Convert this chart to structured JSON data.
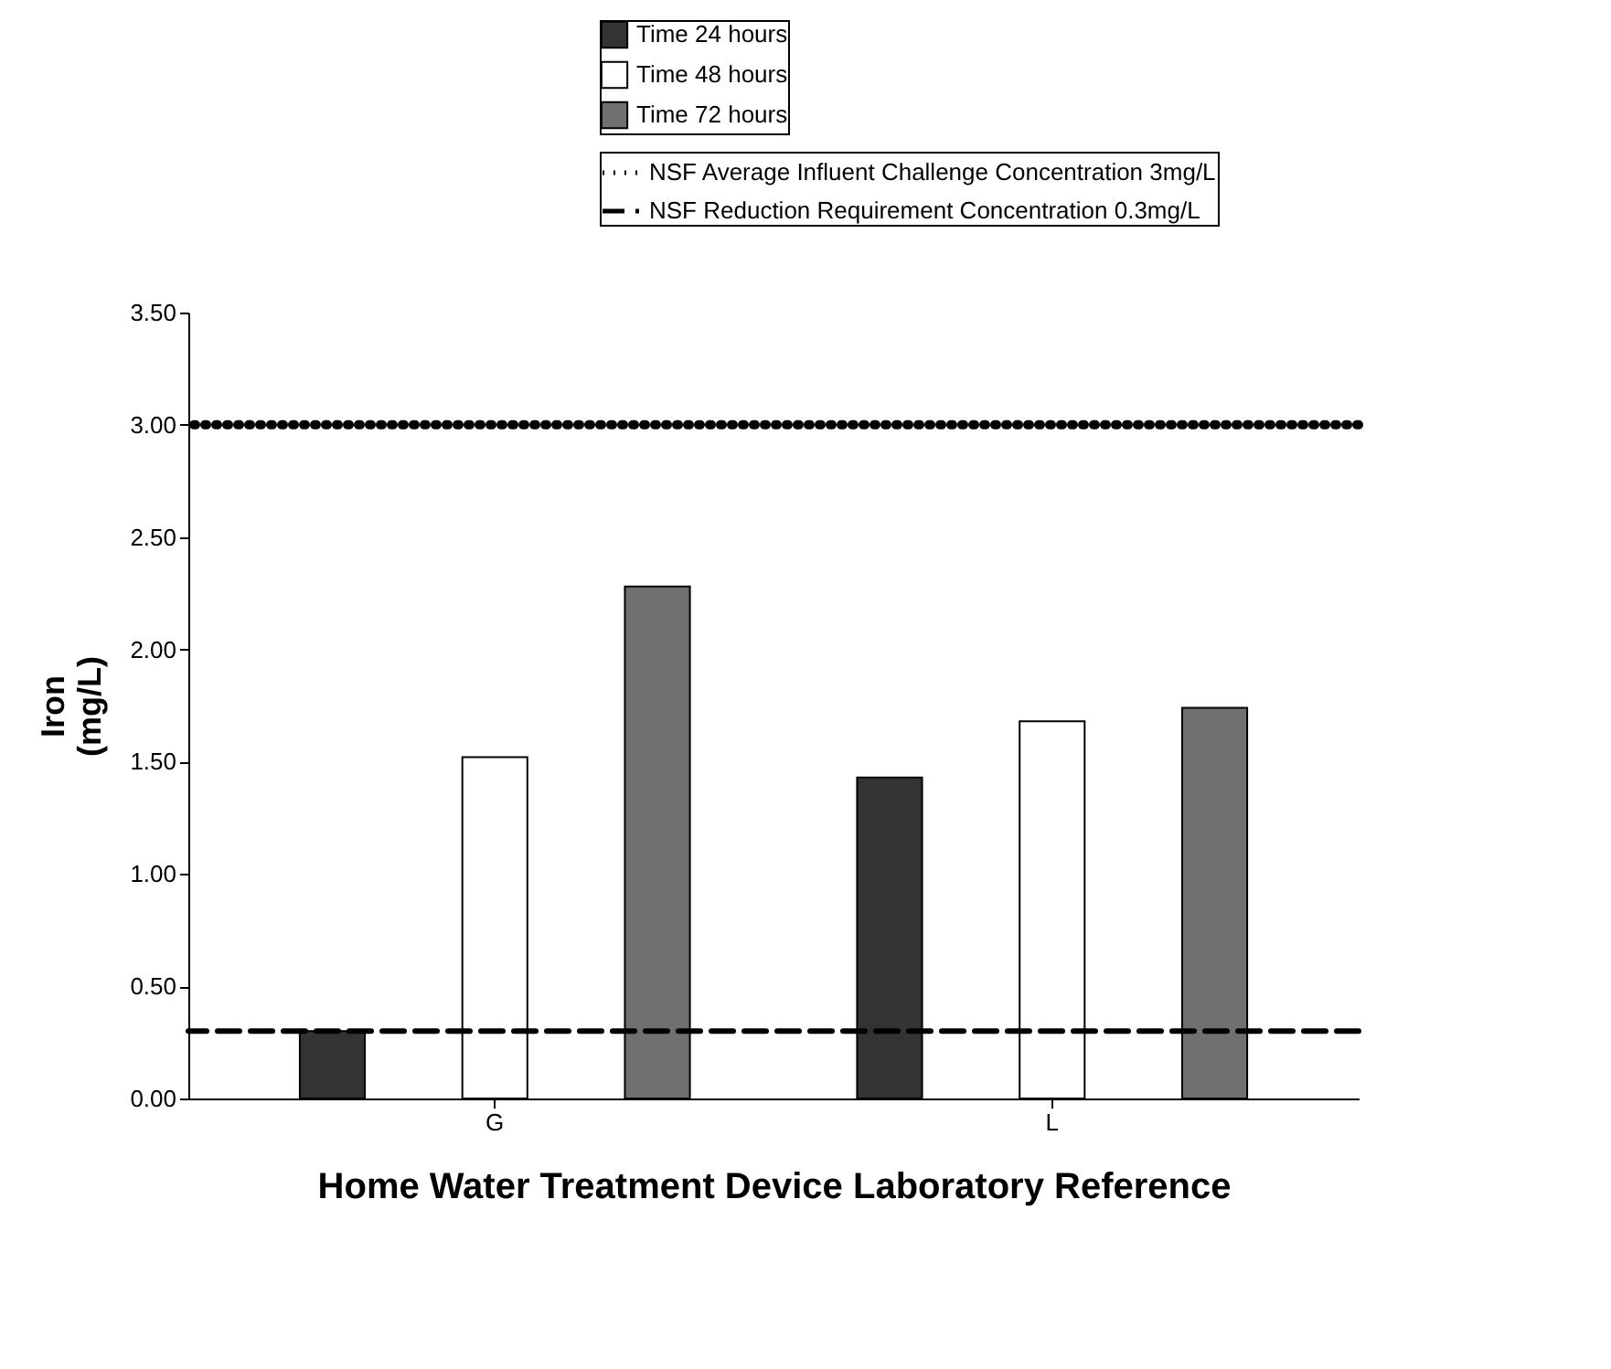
{
  "chart_data": {
    "type": "bar",
    "xlabel": "Home Water Treatment Device Laboratory Reference",
    "ylabel": "Iron\n(mg/L)",
    "categories": [
      "G",
      "L"
    ],
    "series": [
      {
        "name": "Time 24 hours",
        "color": "#333333",
        "values": [
          0.3,
          1.43
        ]
      },
      {
        "name": "Time 48 hours",
        "color": "#ffffff",
        "values": [
          1.52,
          1.68
        ]
      },
      {
        "name": "Time 72 hours",
        "color": "#707070",
        "values": [
          2.28,
          1.74
        ]
      }
    ],
    "ylim": [
      0,
      3.5
    ],
    "yticks": [
      {
        "value": 0,
        "label": "0.00"
      },
      {
        "value": 0.5,
        "label": "0.50"
      },
      {
        "value": 1,
        "label": "1.00"
      },
      {
        "value": 1.5,
        "label": "1.50"
      },
      {
        "value": 2,
        "label": "2.00"
      },
      {
        "value": 2.5,
        "label": "2.50"
      },
      {
        "value": 3,
        "label": "3.00"
      },
      {
        "value": 3.5,
        "label": "3.50"
      }
    ],
    "ref_lines": [
      {
        "axis": "y",
        "value": 3,
        "label": "NSF Average Influent Challenge Concentration 3mg/L",
        "line_style": "dotted",
        "color": "#000000"
      },
      {
        "axis": "y",
        "value": 0.3,
        "label": "NSF Reduction Requirement Concentration 0.3mg/L",
        "line_style": "dashed",
        "color": "#000000"
      }
    ],
    "legend": "top right",
    "grid": false
  }
}
